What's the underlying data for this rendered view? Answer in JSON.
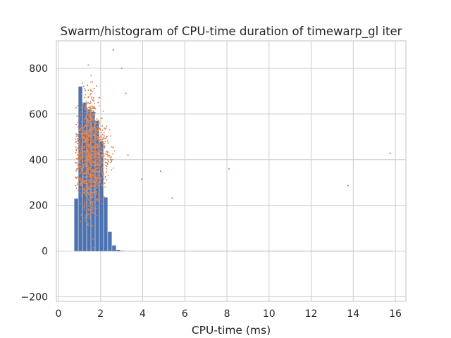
{
  "chart_data": {
    "type": "scatter",
    "title": "Swarm/histogram of CPU-time duration of timewarp_gl iter",
    "xlabel": "CPU-time (ms)",
    "ylabel": "",
    "xlim": [
      -0.1,
      16.5
    ],
    "ylim": [
      -220,
      920
    ],
    "x_ticks": [
      0,
      2,
      4,
      6,
      8,
      10,
      12,
      14,
      16
    ],
    "y_ticks": [
      -200,
      0,
      200,
      400,
      600,
      800
    ],
    "grid": true,
    "colors": {
      "histogram": "#4c72b0",
      "swarm": "#dd8452",
      "grid": "#cccccc",
      "spine": "#cccccc"
    },
    "histogram": {
      "bin_width": 0.2,
      "bars": [
        {
          "x0": 0.75,
          "count": 230
        },
        {
          "x0": 0.95,
          "count": 720
        },
        {
          "x0": 1.15,
          "count": 650
        },
        {
          "x0": 1.35,
          "count": 620
        },
        {
          "x0": 1.55,
          "count": 610
        },
        {
          "x0": 1.75,
          "count": 570
        },
        {
          "x0": 1.95,
          "count": 480
        },
        {
          "x0": 2.15,
          "count": 235
        },
        {
          "x0": 2.35,
          "count": 85
        },
        {
          "x0": 2.55,
          "count": 25
        },
        {
          "x0": 2.75,
          "count": 5
        },
        {
          "x0": 2.95,
          "count": 2
        }
      ],
      "baseline_to": 15.9
    },
    "swarm": {
      "cluster": {
        "x_min": 0.8,
        "x_max": 3.1,
        "x_mode": 1.45,
        "y_min": -170,
        "y_max": 880,
        "y_center": 420,
        "count": 3500
      },
      "outliers": [
        {
          "x": 2.6,
          "y": 880
        },
        {
          "x": 3.0,
          "y": 800
        },
        {
          "x": 3.2,
          "y": 690
        },
        {
          "x": 3.3,
          "y": 420
        },
        {
          "x": 3.95,
          "y": 315
        },
        {
          "x": 4.85,
          "y": 350
        },
        {
          "x": 5.4,
          "y": 232
        },
        {
          "x": 8.1,
          "y": 360
        },
        {
          "x": 13.75,
          "y": 287
        },
        {
          "x": 15.75,
          "y": 428
        }
      ]
    }
  }
}
